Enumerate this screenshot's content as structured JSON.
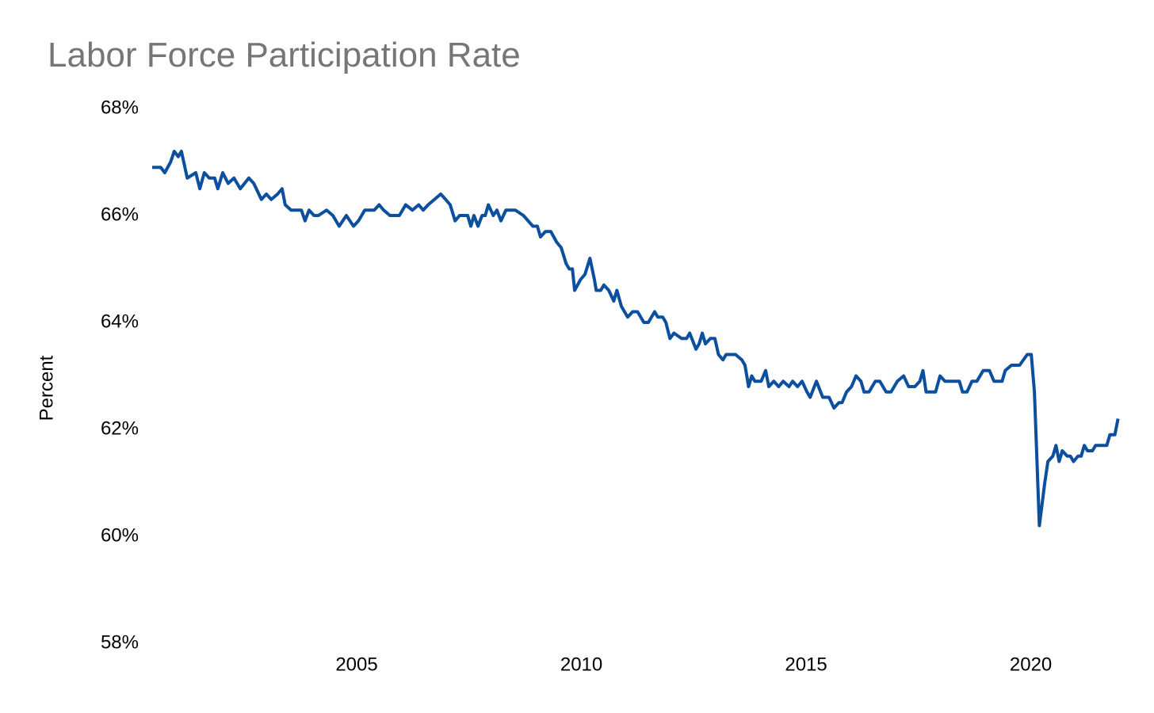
{
  "chart_data": {
    "type": "line",
    "title": "Labor Force Participation Rate",
    "y_label": "Percent",
    "color": "#0b4f9e",
    "xlim": [
      2000,
      2022
    ],
    "xticks": [
      2005,
      2010,
      2015,
      2020
    ],
    "ylim": [
      58,
      68
    ],
    "yticks": [
      {
        "value": 58,
        "label": "58%"
      },
      {
        "value": 60,
        "label": "60%"
      },
      {
        "value": 62,
        "label": "62%"
      },
      {
        "value": 64,
        "label": "64%"
      },
      {
        "value": 66,
        "label": "66%"
      },
      {
        "value": 68,
        "label": "68%"
      }
    ],
    "grid": false,
    "x": [
      2000.45,
      2000.64,
      2000.73,
      2000.86,
      2000.94,
      2001.03,
      2001.1,
      2001.23,
      2001.42,
      2001.51,
      2001.61,
      2001.72,
      2001.84,
      2001.91,
      2002.02,
      2002.14,
      2002.27,
      2002.41,
      2002.6,
      2002.71,
      2002.88,
      2002.99,
      2003.1,
      2003.24,
      2003.34,
      2003.41,
      2003.54,
      2003.77,
      2003.85,
      2003.94,
      2004.05,
      2004.15,
      2004.33,
      2004.47,
      2004.61,
      2004.77,
      2004.93,
      2005.04,
      2005.18,
      2005.39,
      2005.5,
      2005.6,
      2005.74,
      2005.95,
      2006.09,
      2006.24,
      2006.38,
      2006.48,
      2006.59,
      2006.87,
      2006.98,
      2007.08,
      2007.19,
      2007.29,
      2007.47,
      2007.54,
      2007.61,
      2007.7,
      2007.79,
      2007.86,
      2007.93,
      2008.04,
      2008.12,
      2008.21,
      2008.32,
      2008.53,
      2008.71,
      2008.92,
      2009.02,
      2009.09,
      2009.2,
      2009.32,
      2009.45,
      2009.55,
      2009.66,
      2009.73,
      2009.8,
      2009.85,
      2009.98,
      2010.08,
      2010.19,
      2010.29,
      2010.33,
      2010.43,
      2010.5,
      2010.61,
      2010.72,
      2010.79,
      2010.89,
      2011.03,
      2011.14,
      2011.25,
      2011.39,
      2011.49,
      2011.63,
      2011.7,
      2011.81,
      2011.88,
      2011.97,
      2012.06,
      2012.23,
      2012.34,
      2012.41,
      2012.55,
      2012.62,
      2012.69,
      2012.76,
      2012.87,
      2012.97,
      2013.05,
      2013.15,
      2013.22,
      2013.43,
      2013.57,
      2013.64,
      2013.72,
      2013.79,
      2013.86,
      2014.0,
      2014.1,
      2014.17,
      2014.28,
      2014.39,
      2014.49,
      2014.62,
      2014.7,
      2014.81,
      2014.91,
      2015.02,
      2015.09,
      2015.23,
      2015.37,
      2015.51,
      2015.62,
      2015.73,
      2015.8,
      2015.9,
      2016.01,
      2016.11,
      2016.22,
      2016.29,
      2016.4,
      2016.54,
      2016.64,
      2016.78,
      2016.89,
      2017.03,
      2017.17,
      2017.28,
      2017.42,
      2017.53,
      2017.6,
      2017.67,
      2017.88,
      2017.98,
      2018.09,
      2018.41,
      2018.48,
      2018.58,
      2018.69,
      2018.8,
      2018.94,
      2019.08,
      2019.18,
      2019.36,
      2019.43,
      2019.57,
      2019.75,
      2019.92,
      2020.01,
      2020.08,
      2020.19,
      2020.31,
      2020.38,
      2020.49,
      2020.56,
      2020.63,
      2020.7,
      2020.81,
      2020.88,
      2020.95,
      2021.05,
      2021.12,
      2021.19,
      2021.26,
      2021.37,
      2021.44,
      2021.69,
      2021.76,
      2021.87,
      2021.94
    ],
    "values": [
      66.9,
      66.9,
      66.8,
      67.0,
      67.2,
      67.1,
      67.2,
      66.7,
      66.8,
      66.5,
      66.8,
      66.7,
      66.7,
      66.5,
      66.8,
      66.6,
      66.7,
      66.5,
      66.7,
      66.6,
      66.3,
      66.4,
      66.3,
      66.4,
      66.5,
      66.2,
      66.1,
      66.1,
      65.9,
      66.1,
      66.0,
      66.0,
      66.1,
      66.0,
      65.8,
      66.0,
      65.8,
      65.9,
      66.1,
      66.1,
      66.2,
      66.1,
      66.0,
      66.0,
      66.2,
      66.1,
      66.2,
      66.1,
      66.2,
      66.4,
      66.3,
      66.2,
      65.9,
      66.0,
      66.0,
      65.8,
      66.0,
      65.8,
      66.0,
      66.0,
      66.2,
      66.0,
      66.1,
      65.9,
      66.1,
      66.1,
      66.0,
      65.8,
      65.8,
      65.6,
      65.7,
      65.7,
      65.5,
      65.4,
      65.1,
      65.0,
      65.0,
      64.6,
      64.8,
      64.9,
      65.2,
      64.8,
      64.6,
      64.6,
      64.7,
      64.6,
      64.4,
      64.6,
      64.3,
      64.1,
      64.2,
      64.2,
      64.0,
      64.0,
      64.2,
      64.1,
      64.1,
      64.0,
      63.7,
      63.8,
      63.7,
      63.7,
      63.8,
      63.5,
      63.6,
      63.8,
      63.6,
      63.7,
      63.7,
      63.4,
      63.3,
      63.4,
      63.4,
      63.3,
      63.2,
      62.8,
      63.0,
      62.9,
      62.9,
      63.1,
      62.8,
      62.9,
      62.8,
      62.9,
      62.8,
      62.9,
      62.8,
      62.9,
      62.7,
      62.6,
      62.9,
      62.6,
      62.6,
      62.4,
      62.5,
      62.5,
      62.7,
      62.8,
      63.0,
      62.9,
      62.7,
      62.7,
      62.9,
      62.9,
      62.7,
      62.7,
      62.9,
      63.0,
      62.8,
      62.8,
      62.9,
      63.1,
      62.7,
      62.7,
      63.0,
      62.9,
      62.9,
      62.7,
      62.7,
      62.9,
      62.9,
      63.1,
      63.1,
      62.9,
      62.9,
      63.1,
      63.2,
      63.2,
      63.4,
      63.4,
      62.7,
      60.2,
      61.0,
      61.4,
      61.5,
      61.7,
      61.4,
      61.6,
      61.5,
      61.5,
      61.4,
      61.5,
      61.5,
      61.7,
      61.6,
      61.6,
      61.7,
      61.7,
      61.9,
      61.9,
      62.2
    ]
  }
}
